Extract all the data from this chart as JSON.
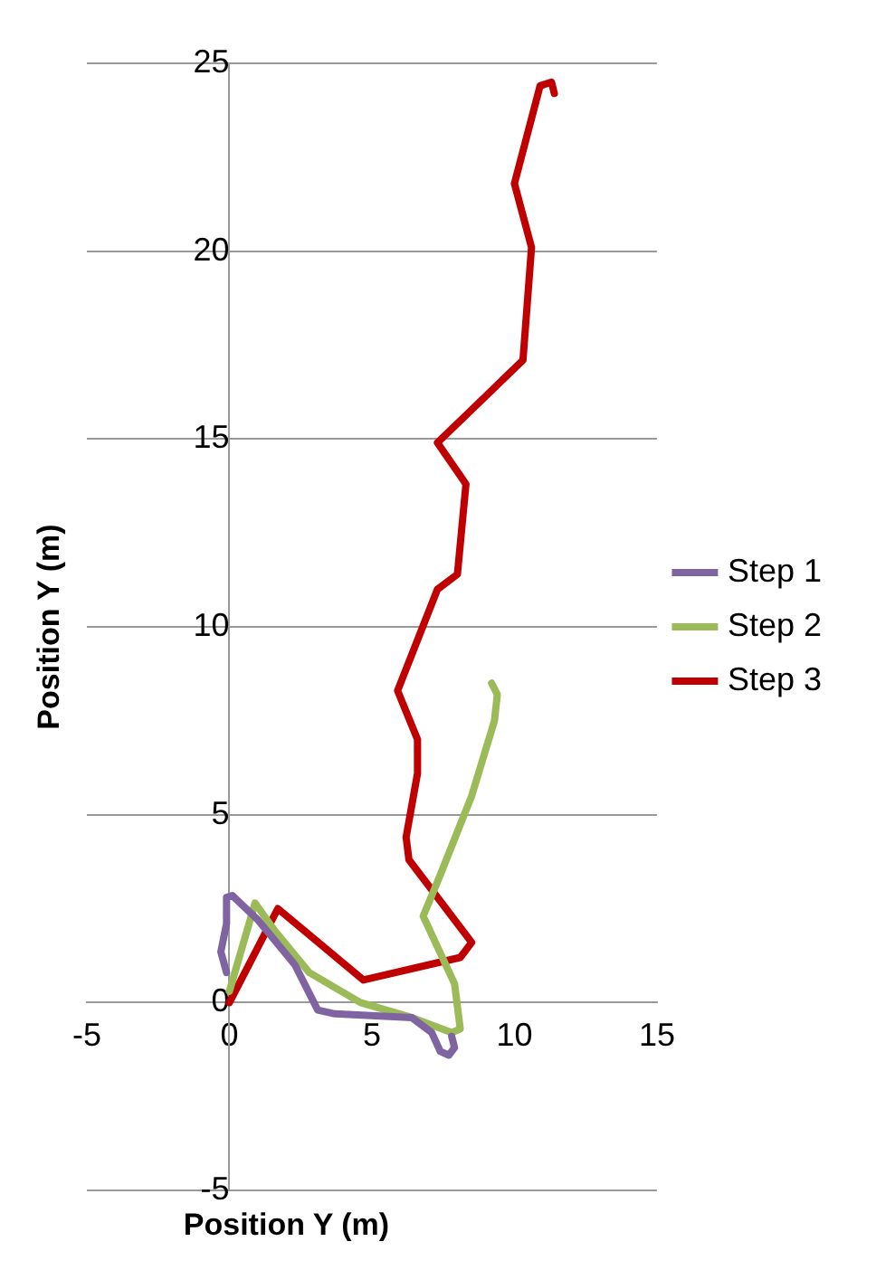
{
  "chart_data": {
    "type": "line",
    "xlabel": "Position Y (m)",
    "ylabel": "Position Y (m)",
    "xlim": [
      -5,
      15
    ],
    "xticks": [
      -5,
      0,
      5,
      10,
      15
    ],
    "ylim": [
      -5,
      25
    ],
    "yticks": [
      -5,
      0,
      5,
      10,
      15,
      20,
      25
    ],
    "grid": "y",
    "legend": "right",
    "line_style": "solid",
    "series": [
      {
        "name": "Step 1",
        "color": "#8064a2",
        "x": [
          -0.1,
          -0.3,
          -0.1,
          -0.1,
          0.1,
          1.0,
          2.3,
          3.1,
          3.7,
          6.4,
          7.1,
          7.4,
          7.7,
          7.9,
          7.8
        ],
        "values": [
          0.8,
          1.35,
          2.1,
          2.8,
          2.85,
          2.2,
          1.0,
          -0.2,
          -0.3,
          -0.4,
          -0.8,
          -1.3,
          -1.4,
          -1.2,
          -0.9
        ]
      },
      {
        "name": "Step 2",
        "color": "#9bbb59",
        "x": [
          0,
          0.9,
          1.6,
          2.8,
          4.6,
          6.4,
          7.8,
          8.1,
          7.9,
          6.8,
          7.4,
          8.5,
          9.3,
          9.4,
          9.2
        ],
        "values": [
          0.3,
          2.65,
          1.9,
          0.8,
          0,
          -0.4,
          -0.8,
          -0.7,
          0.5,
          2.3,
          3.4,
          5.5,
          7.5,
          8.2,
          8.5
        ]
      },
      {
        "name": "Step 3",
        "color": "#c00000",
        "x": [
          0,
          1.7,
          4.7,
          8.1,
          8.5,
          6.3,
          6.2,
          6.6,
          6.6,
          5.9,
          7.3,
          8.0,
          8.3,
          7.3,
          10.3,
          10.6,
          10.0,
          10.9,
          11.3,
          11.4
        ],
        "values": [
          0,
          2.5,
          0.6,
          1.2,
          1.6,
          3.8,
          4.4,
          6.1,
          7.0,
          8.3,
          11.0,
          11.4,
          13.8,
          14.9,
          17.1,
          20.1,
          21.8,
          24.4,
          24.5,
          24.2
        ]
      }
    ]
  }
}
